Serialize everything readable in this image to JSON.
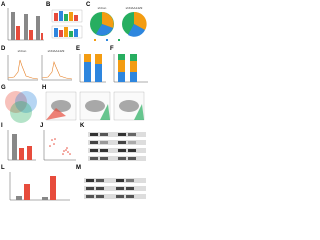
{
  "panels": [
    "A",
    "B",
    "C",
    "D",
    "E",
    "F",
    "G",
    "H",
    "I",
    "J",
    "K",
    "L",
    "M"
  ],
  "pie_titles": [
    "shCon",
    "shKIAA1429"
  ],
  "line_titles": [
    "shCon",
    "shKIAA1429"
  ]
}
